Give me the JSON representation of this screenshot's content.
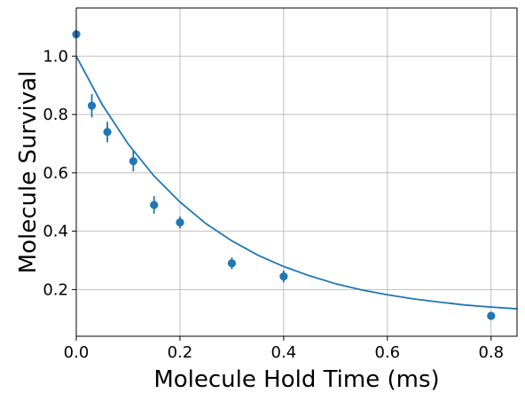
{
  "chart_data": {
    "type": "scatter",
    "title": "",
    "xlabel": "Molecule Hold Time (ms)",
    "ylabel": "Molecule Survival",
    "xlim": [
      0.0,
      0.85
    ],
    "ylim": [
      0.04,
      1.165
    ],
    "grid": true,
    "x_ticks": [
      0.0,
      0.2,
      0.4,
      0.6,
      0.8
    ],
    "x_tick_labels": [
      "0.0",
      "0.2",
      "0.4",
      "0.6",
      "0.8"
    ],
    "y_ticks": [
      0.2,
      0.4,
      0.6,
      0.8,
      1.0
    ],
    "y_tick_labels": [
      "0.2",
      "0.4",
      "0.6",
      "0.8",
      "1.0"
    ],
    "series": [
      {
        "kind": "scatter-errorbar",
        "color": "#1f77b4",
        "points": [
          {
            "x": 0.0,
            "y": 1.075,
            "err": 0.0
          },
          {
            "x": 0.03,
            "y": 0.83,
            "err": 0.04
          },
          {
            "x": 0.06,
            "y": 0.74,
            "err": 0.035
          },
          {
            "x": 0.11,
            "y": 0.64,
            "err": 0.035
          },
          {
            "x": 0.15,
            "y": 0.49,
            "err": 0.03
          },
          {
            "x": 0.2,
            "y": 0.43,
            "err": 0.02
          },
          {
            "x": 0.3,
            "y": 0.29,
            "err": 0.02
          },
          {
            "x": 0.4,
            "y": 0.245,
            "err": 0.02
          },
          {
            "x": 0.8,
            "y": 0.11,
            "err": 0.01
          }
        ]
      },
      {
        "kind": "fit-line",
        "color": "#1f77b4",
        "model": "exponential decay",
        "curve": [
          {
            "x": 0.0,
            "y": 1.0
          },
          {
            "x": 0.05,
            "y": 0.834
          },
          {
            "x": 0.1,
            "y": 0.699
          },
          {
            "x": 0.15,
            "y": 0.589
          },
          {
            "x": 0.2,
            "y": 0.5
          },
          {
            "x": 0.25,
            "y": 0.426
          },
          {
            "x": 0.3,
            "y": 0.367
          },
          {
            "x": 0.35,
            "y": 0.318
          },
          {
            "x": 0.4,
            "y": 0.279
          },
          {
            "x": 0.45,
            "y": 0.247
          },
          {
            "x": 0.5,
            "y": 0.22
          },
          {
            "x": 0.55,
            "y": 0.199
          },
          {
            "x": 0.6,
            "y": 0.182
          },
          {
            "x": 0.65,
            "y": 0.168
          },
          {
            "x": 0.7,
            "y": 0.157
          },
          {
            "x": 0.75,
            "y": 0.147
          },
          {
            "x": 0.8,
            "y": 0.14
          },
          {
            "x": 0.85,
            "y": 0.134
          }
        ]
      }
    ]
  }
}
